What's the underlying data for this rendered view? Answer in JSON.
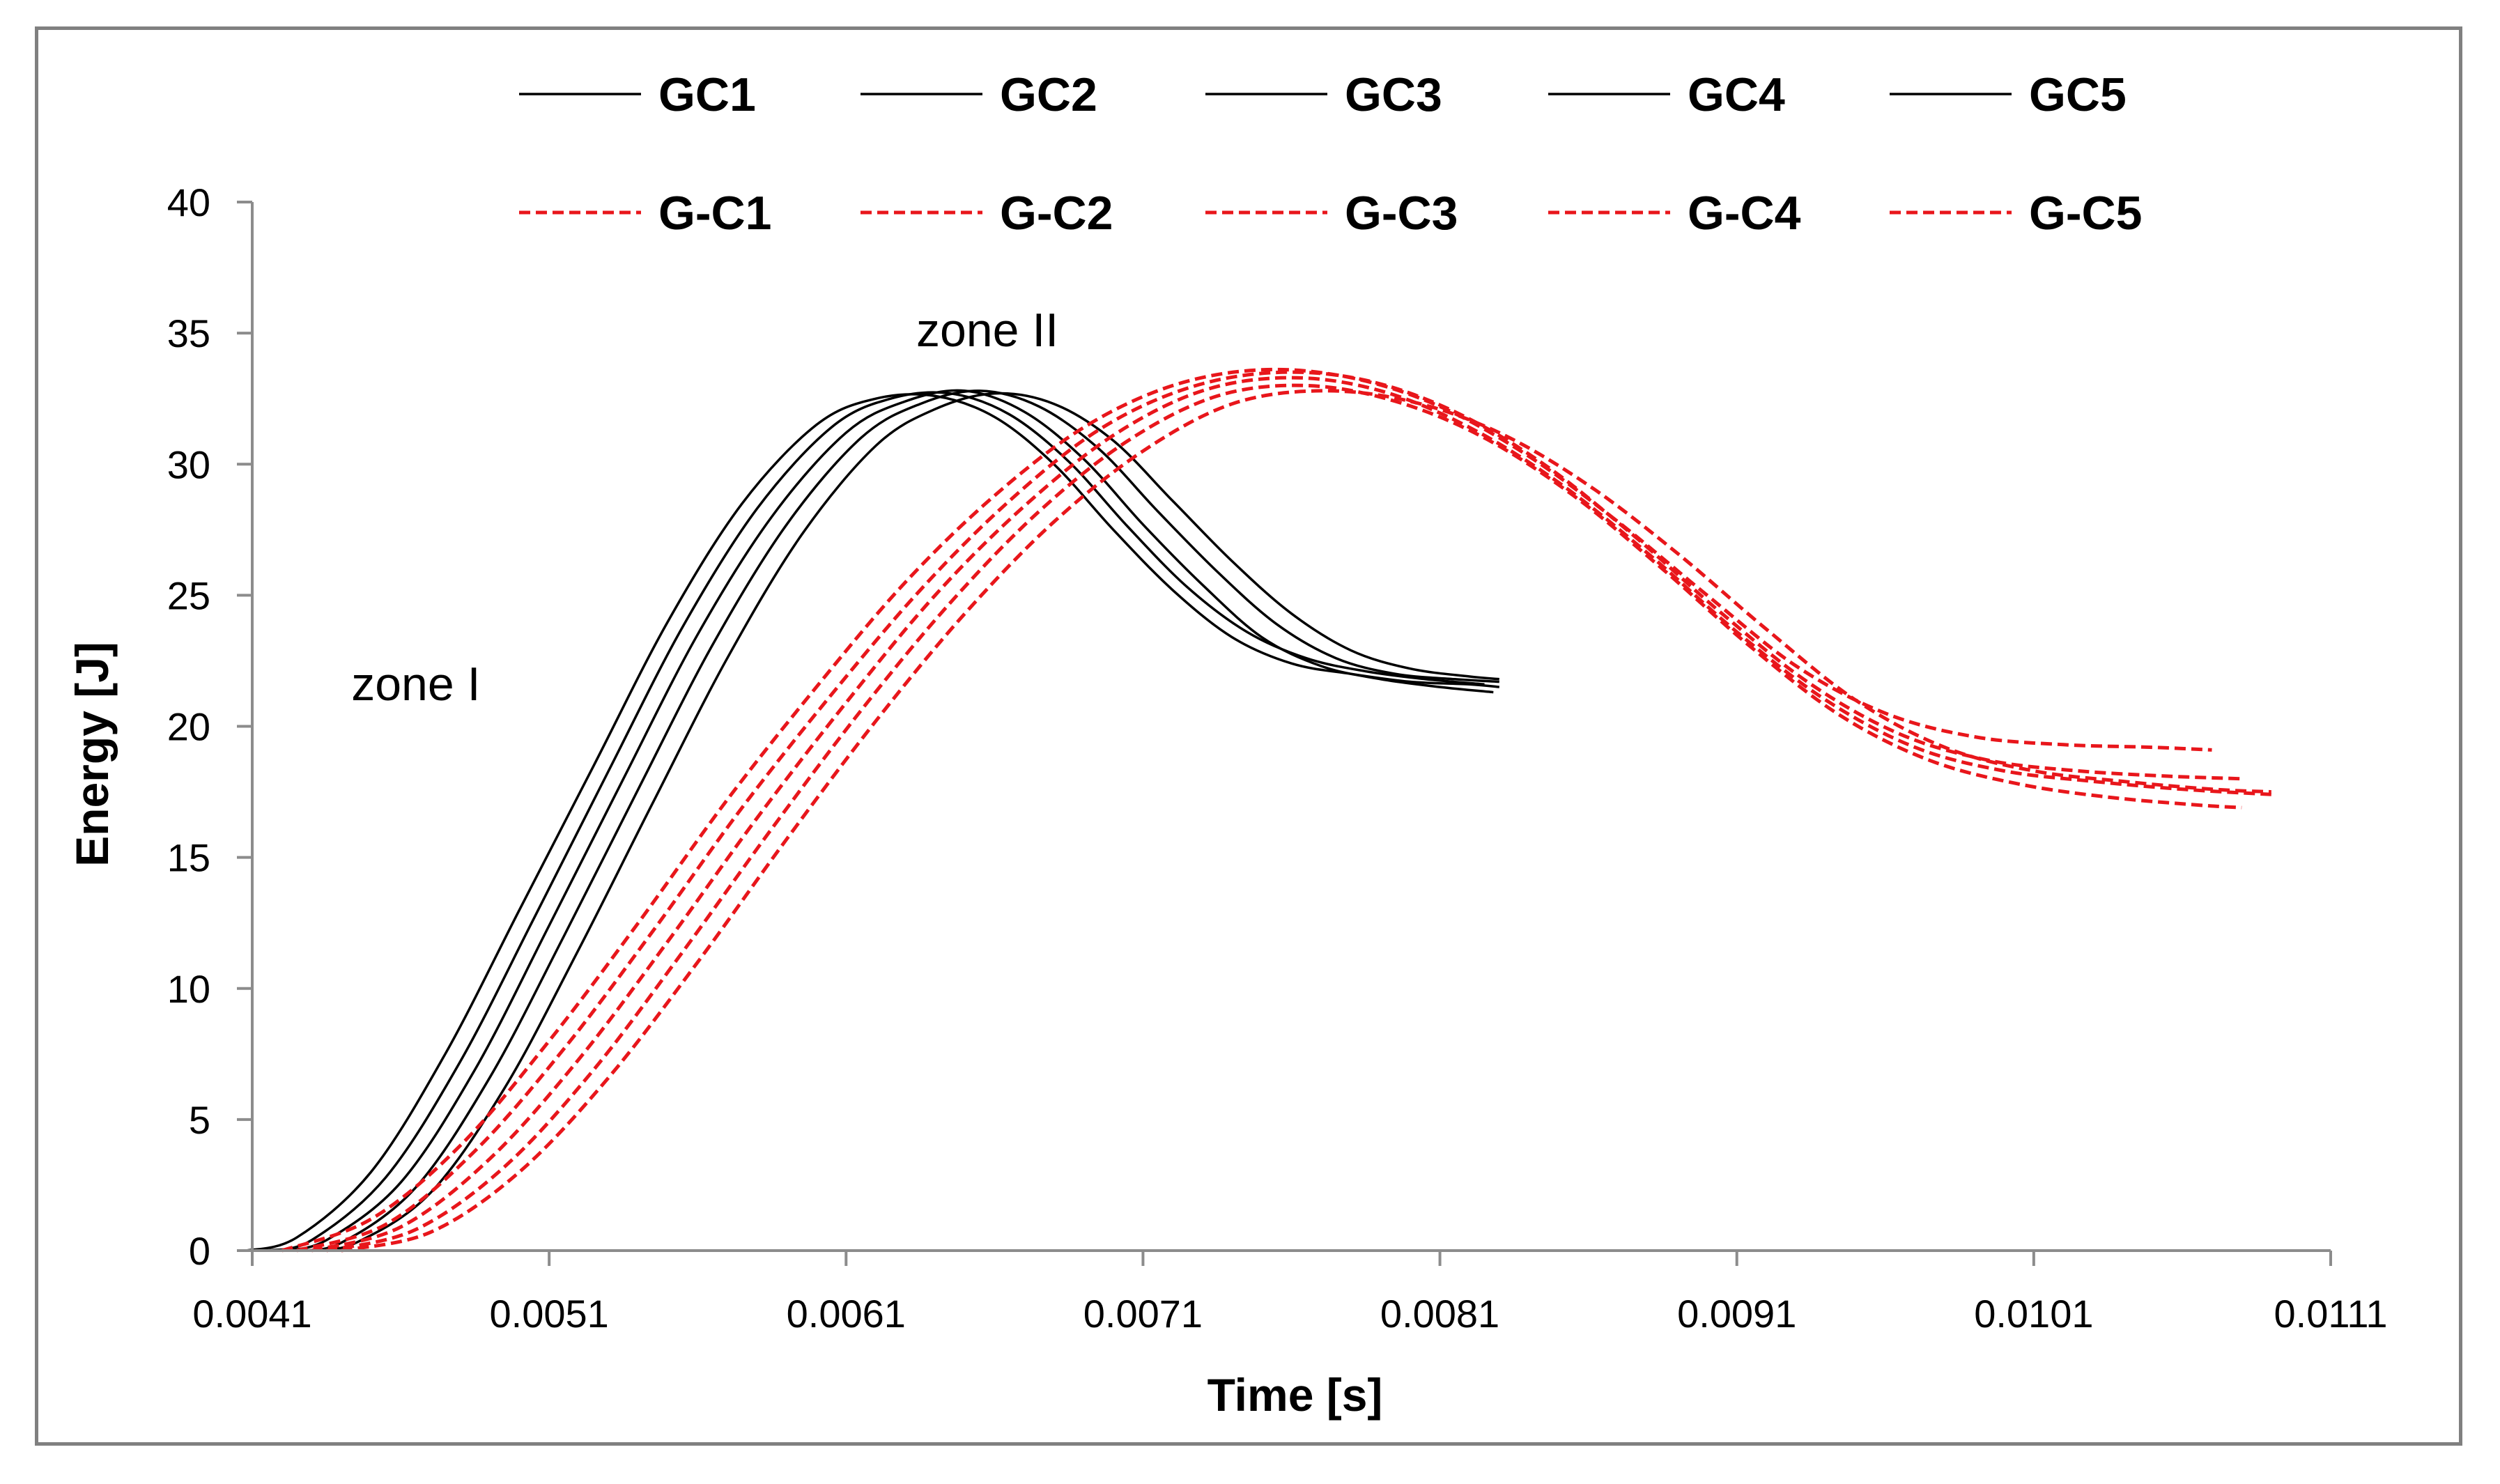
{
  "chart_data": {
    "type": "line",
    "title": "",
    "xlabel": "Time [s]",
    "ylabel": "Energy [J]",
    "xlim": [
      0.0041,
      0.0111
    ],
    "ylim": [
      0,
      40
    ],
    "xticks": [
      "0.0041",
      "0.0051",
      "0.0061",
      "0.0071",
      "0.0081",
      "0.0091",
      "0.0101",
      "0.0111"
    ],
    "yticks": [
      "0",
      "5",
      "10",
      "15",
      "20",
      "25",
      "30",
      "35",
      "40"
    ],
    "grid": false,
    "legend_position": "top",
    "annotations": [
      {
        "text": "zone I",
        "x": 0.00495,
        "y": 21
      },
      {
        "text": "zone II",
        "x": 0.0067,
        "y": 34.5
      }
    ],
    "series": [
      {
        "name": "GC1",
        "group": "GC",
        "color": "#000000",
        "dash": "solid",
        "x": [
          0.00408,
          0.00425,
          0.0045,
          0.00475,
          0.005,
          0.00525,
          0.0055,
          0.00575,
          0.006,
          0.0062,
          0.0064,
          0.0066,
          0.0068,
          0.007,
          0.0072,
          0.0074,
          0.0076,
          0.0078,
          0.008,
          0.0082,
          0.0083
        ],
        "y": [
          0,
          0.5,
          3.0,
          7.5,
          13.0,
          18.5,
          24.0,
          28.5,
          31.5,
          32.5,
          32.6,
          31.8,
          30.0,
          27.5,
          25.2,
          23.4,
          22.4,
          22.0,
          21.7,
          21.6,
          21.5
        ]
      },
      {
        "name": "GC2",
        "group": "GC",
        "color": "#000000",
        "dash": "solid",
        "x": [
          0.00415,
          0.0043,
          0.00455,
          0.0048,
          0.00505,
          0.0053,
          0.00555,
          0.0058,
          0.00605,
          0.00625,
          0.00645,
          0.00665,
          0.00685,
          0.00705,
          0.00725,
          0.00745,
          0.00765,
          0.00785,
          0.00805,
          0.00825
        ],
        "y": [
          0,
          0.4,
          2.8,
          7.2,
          12.7,
          18.3,
          23.8,
          28.3,
          31.4,
          32.5,
          32.7,
          31.9,
          30.1,
          27.6,
          25.3,
          23.6,
          22.6,
          22.1,
          21.8,
          21.6
        ]
      },
      {
        "name": "GC3",
        "group": "GC",
        "color": "#000000",
        "dash": "solid",
        "x": [
          0.0042,
          0.00435,
          0.0046,
          0.00485,
          0.0051,
          0.00535,
          0.0056,
          0.00585,
          0.0061,
          0.0063,
          0.0065,
          0.0067,
          0.0069,
          0.0071,
          0.0073,
          0.0075,
          0.0077,
          0.0079,
          0.0081,
          0.00828
        ],
        "y": [
          0,
          0.4,
          2.6,
          6.9,
          12.4,
          18.0,
          23.5,
          28.0,
          31.2,
          32.4,
          32.8,
          32.0,
          30.2,
          27.7,
          25.4,
          23.4,
          22.3,
          21.8,
          21.5,
          21.3
        ]
      },
      {
        "name": "GC4",
        "group": "GC",
        "color": "#000000",
        "dash": "solid",
        "x": [
          0.00425,
          0.0044,
          0.00465,
          0.0049,
          0.00515,
          0.0054,
          0.00565,
          0.0059,
          0.00615,
          0.00635,
          0.00655,
          0.00675,
          0.00695,
          0.00715,
          0.00735,
          0.00755,
          0.00775,
          0.00795,
          0.00815,
          0.0083
        ],
        "y": [
          0,
          0.3,
          2.4,
          6.6,
          12.0,
          17.6,
          23.1,
          27.7,
          31.0,
          32.3,
          32.8,
          32.2,
          30.6,
          28.2,
          25.9,
          23.9,
          22.6,
          22.0,
          21.8,
          21.7
        ]
      },
      {
        "name": "GC5",
        "group": "GC",
        "color": "#000000",
        "dash": "solid",
        "x": [
          0.0043,
          0.00445,
          0.0047,
          0.00495,
          0.0052,
          0.00545,
          0.0057,
          0.00595,
          0.0062,
          0.0064,
          0.0066,
          0.0068,
          0.007,
          0.0072,
          0.0074,
          0.0076,
          0.0078,
          0.008,
          0.0082,
          0.0083
        ],
        "y": [
          0,
          0.3,
          2.2,
          6.2,
          11.5,
          17.1,
          22.6,
          27.3,
          30.7,
          32.1,
          32.7,
          32.3,
          30.9,
          28.6,
          26.3,
          24.3,
          22.9,
          22.2,
          21.9,
          21.8
        ]
      },
      {
        "name": "G-C1",
        "group": "G-C",
        "color": "#e8161b",
        "dash": "dashed",
        "x": [
          0.0042,
          0.0045,
          0.0048,
          0.0051,
          0.0054,
          0.0057,
          0.006,
          0.0063,
          0.0066,
          0.0069,
          0.0072,
          0.0075,
          0.0078,
          0.0081,
          0.0084,
          0.0087,
          0.009,
          0.0093,
          0.0096,
          0.0099,
          0.0102,
          0.0105,
          0.0107
        ],
        "y": [
          0,
          1.2,
          4.0,
          8.0,
          12.5,
          17.2,
          21.5,
          25.5,
          28.8,
          31.4,
          33.0,
          33.6,
          33.3,
          32.2,
          30.3,
          27.8,
          25.0,
          22.3,
          20.5,
          19.6,
          19.3,
          19.2,
          19.1
        ]
      },
      {
        "name": "G-C2",
        "group": "G-C",
        "color": "#e8161b",
        "dash": "dashed",
        "x": [
          0.00425,
          0.00455,
          0.00485,
          0.00515,
          0.00545,
          0.00575,
          0.00605,
          0.00635,
          0.00665,
          0.00695,
          0.00725,
          0.00755,
          0.00785,
          0.00815,
          0.00845,
          0.00875,
          0.00905,
          0.00935,
          0.00965,
          0.00995,
          0.01025,
          0.01055,
          0.0108
        ],
        "y": [
          0,
          1.0,
          3.8,
          7.7,
          12.2,
          16.9,
          21.2,
          25.2,
          28.6,
          31.3,
          32.9,
          33.5,
          33.2,
          32.0,
          30.0,
          27.3,
          24.3,
          21.6,
          19.7,
          18.7,
          18.3,
          18.1,
          18.0
        ]
      },
      {
        "name": "G-C3",
        "group": "G-C",
        "color": "#e8161b",
        "dash": "dashed",
        "x": [
          0.0043,
          0.0046,
          0.0049,
          0.0052,
          0.0055,
          0.0058,
          0.0061,
          0.0064,
          0.0067,
          0.007,
          0.0073,
          0.0076,
          0.0079,
          0.0082,
          0.0085,
          0.0088,
          0.0091,
          0.0094,
          0.0097,
          0.01,
          0.0103,
          0.0106,
          0.0109
        ],
        "y": [
          0,
          0.9,
          3.5,
          7.3,
          11.8,
          16.5,
          20.9,
          25.0,
          28.4,
          31.1,
          32.8,
          33.3,
          32.8,
          31.4,
          29.3,
          26.6,
          23.6,
          21.0,
          19.2,
          18.3,
          17.9,
          17.6,
          17.4
        ]
      },
      {
        "name": "G-C4",
        "group": "G-C",
        "color": "#e8161b",
        "dash": "dashed",
        "x": [
          0.00435,
          0.00465,
          0.00495,
          0.00525,
          0.00555,
          0.00585,
          0.00615,
          0.00645,
          0.00675,
          0.00705,
          0.00735,
          0.00765,
          0.00795,
          0.00825,
          0.00855,
          0.00885,
          0.00915,
          0.00945,
          0.00975,
          0.01005,
          0.01035,
          0.01065,
          0.0108
        ],
        "y": [
          0,
          0.8,
          3.2,
          6.9,
          11.4,
          16.1,
          20.6,
          24.7,
          28.2,
          30.9,
          32.6,
          33.0,
          32.4,
          31.0,
          28.8,
          26.0,
          23.0,
          20.4,
          18.7,
          17.8,
          17.3,
          17.0,
          16.9
        ]
      },
      {
        "name": "G-C5",
        "group": "G-C",
        "color": "#e8161b",
        "dash": "dashed",
        "x": [
          0.0044,
          0.0047,
          0.005,
          0.0053,
          0.0056,
          0.0059,
          0.0062,
          0.0065,
          0.0068,
          0.0071,
          0.0074,
          0.0077,
          0.008,
          0.0083,
          0.0086,
          0.0089,
          0.0092,
          0.0095,
          0.0098,
          0.0101,
          0.0104,
          0.0107,
          0.0109
        ],
        "y": [
          0,
          0.7,
          3.0,
          6.6,
          11.0,
          15.7,
          20.2,
          24.3,
          27.8,
          30.5,
          32.3,
          32.8,
          32.4,
          31.2,
          29.2,
          26.6,
          23.7,
          21.0,
          19.2,
          18.3,
          17.9,
          17.6,
          17.5
        ]
      }
    ],
    "legend": {
      "row1": [
        "GC1",
        "GC2",
        "GC3",
        "GC4",
        "GC5"
      ],
      "row2": [
        "G-C1",
        "G-C2",
        "G-C3",
        "G-C4",
        "G-C5"
      ]
    }
  }
}
